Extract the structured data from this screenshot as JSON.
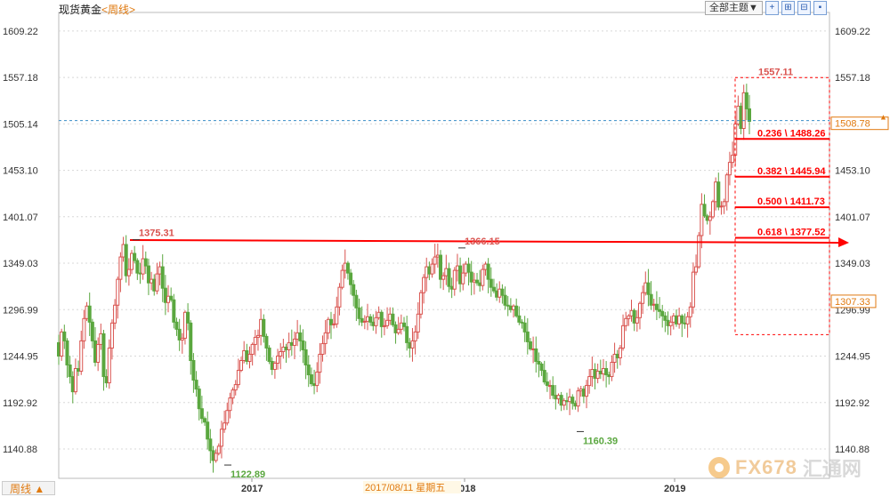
{
  "header": {
    "title": "现货黄金",
    "period_label": "<周线>"
  },
  "toolbar": {
    "theme_select": "全部主题▼",
    "btn1": "+",
    "btn2": "⊞",
    "btn3": "⊟",
    "btn4": "▪"
  },
  "footer": {
    "period_button": "周线 ▲",
    "crosshair_date": "2017/08/11  星期五"
  },
  "watermark": {
    "brand": "FX678",
    "cn": "汇通网"
  },
  "colors": {
    "up": "#d9534f",
    "down": "#5aa73f",
    "fib": "#ff0000",
    "price_line": "#3a8fc8",
    "price_box": "#e07a10",
    "grid": "#d8d8d8"
  },
  "chart_data": {
    "type": "candlestick",
    "title": "现货黄金<周线>",
    "y_ticks": [
      1609.22,
      1557.18,
      1505.14,
      1453.1,
      1401.07,
      1349.03,
      1296.99,
      1244.95,
      1192.92,
      1140.88
    ],
    "ylim": [
      1108,
      1630
    ],
    "x_tick_labels": [
      "2017",
      "2018",
      "2019"
    ],
    "current_price": "1508.78",
    "last_close_marker": "1307.33",
    "annotations": {
      "high_2016": "1375.31",
      "low_2016": "1122.89",
      "high_2018": "1366.15",
      "low_2018": "1160.39",
      "high_2019": "1557.11"
    },
    "fibonacci": [
      {
        "level": "0.236",
        "price": "1488.26",
        "value": 1488.26
      },
      {
        "level": "0.382",
        "price": "1445.94",
        "value": 1445.94
      },
      {
        "level": "0.500",
        "price": "1411.73",
        "value": 1411.73
      },
      {
        "level": "0.618",
        "price": "1377.52",
        "value": 1377.52
      }
    ],
    "fib_range": [
      1269,
      1557
    ],
    "trend_line": [
      1373,
      1373
    ],
    "closes": [
      1245,
      1272,
      1262,
      1235,
      1222,
      1205,
      1231,
      1228,
      1262,
      1287,
      1301,
      1283,
      1262,
      1238,
      1258,
      1270,
      1222,
      1215,
      1254,
      1282,
      1302,
      1331,
      1356,
      1370,
      1335,
      1342,
      1360,
      1352,
      1338,
      1337,
      1354,
      1346,
      1327,
      1331,
      1318,
      1337,
      1345,
      1321,
      1305,
      1312,
      1308,
      1283,
      1275,
      1263,
      1265,
      1294,
      1282,
      1240,
      1218,
      1208,
      1186,
      1175,
      1171,
      1152,
      1139,
      1128,
      1136,
      1144,
      1163,
      1170,
      1184,
      1198,
      1207,
      1213,
      1229,
      1240,
      1251,
      1239,
      1247,
      1258,
      1266,
      1268,
      1286,
      1267,
      1254,
      1239,
      1230,
      1237,
      1245,
      1250,
      1255,
      1252,
      1260,
      1257,
      1264,
      1271,
      1262,
      1252,
      1235,
      1224,
      1214,
      1212,
      1227,
      1247,
      1259,
      1271,
      1286,
      1280,
      1281,
      1300,
      1322,
      1341,
      1349,
      1338,
      1325,
      1313,
      1299,
      1287,
      1283,
      1284,
      1289,
      1283,
      1279,
      1288,
      1294,
      1278,
      1279,
      1285,
      1292,
      1280,
      1271,
      1275,
      1282,
      1278,
      1260,
      1254,
      1262,
      1272,
      1292,
      1316,
      1333,
      1345,
      1337,
      1348,
      1356,
      1358,
      1331,
      1335,
      1343,
      1323,
      1320,
      1341,
      1346,
      1326,
      1338,
      1348,
      1339,
      1328,
      1330,
      1327,
      1324,
      1342,
      1348,
      1331,
      1322,
      1318,
      1311,
      1320,
      1313,
      1302,
      1301,
      1297,
      1301,
      1290,
      1283,
      1282,
      1272,
      1261,
      1253,
      1253,
      1239,
      1236,
      1229,
      1216,
      1212,
      1212,
      1201,
      1197,
      1201,
      1190,
      1195,
      1194,
      1199,
      1192,
      1189,
      1206,
      1208,
      1200,
      1212,
      1222,
      1230,
      1220,
      1228,
      1225,
      1231,
      1224,
      1222,
      1238,
      1247,
      1243,
      1254,
      1279,
      1287,
      1290,
      1296,
      1282,
      1288,
      1304,
      1316,
      1327,
      1314,
      1302,
      1303,
      1297,
      1295,
      1290,
      1285,
      1279,
      1283,
      1290,
      1281,
      1290,
      1282,
      1281,
      1289,
      1300,
      1339,
      1345,
      1380,
      1415,
      1402,
      1397,
      1401,
      1418,
      1440,
      1412,
      1413,
      1418,
      1448,
      1462,
      1470,
      1505,
      1525,
      1500,
      1540,
      1522,
      1508
    ]
  }
}
